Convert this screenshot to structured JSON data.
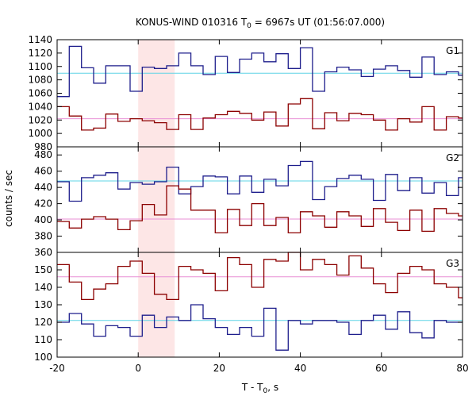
{
  "chart_data": {
    "type": "line",
    "style": "step",
    "title_main": "KONUS-WIND 010316 T",
    "title_sub": "0",
    "title_rest": " = 6967s UT (01:56:07.000)",
    "xlabel_main": "T - T",
    "xlabel_sub": "0",
    "xlabel_rest": ", s",
    "ylabel": "counts / sec",
    "xlim": [
      -20,
      80
    ],
    "x_ticks": [
      "-20",
      "0",
      "20",
      "40",
      "60",
      "80"
    ],
    "highlight_interval": [
      0,
      9
    ],
    "colors": {
      "highlight": "#fde6e6",
      "blue": "#1e1e8c",
      "red": "#8c0000",
      "cyan": "#5fd4e6",
      "pink": "#e88fd6"
    },
    "panels": [
      {
        "name": "G1",
        "ylim": [
          980,
          1140
        ],
        "y_ticks": [
          "980",
          "1000",
          "1020",
          "1040",
          "1060",
          "1080",
          "1100",
          "1120",
          "1140"
        ],
        "blue_baseline": 1090,
        "red_baseline": 1022,
        "series": [
          {
            "color": "blue",
            "x": [
              -20,
              -17,
              -14,
              -11,
              -8,
              -5,
              -2,
              1,
              4,
              7,
              10,
              13,
              16,
              19,
              22,
              25,
              28,
              31,
              34,
              37,
              40,
              43,
              46,
              49,
              52,
              55,
              58,
              61,
              64,
              67,
              70,
              73,
              76,
              79
            ],
            "values": [
              1055,
              1130,
              1098,
              1075,
              1101,
              1101,
              1063,
              1099,
              1097,
              1101,
              1120,
              1101,
              1088,
              1115,
              1091,
              1111,
              1120,
              1107,
              1119,
              1097,
              1128,
              1063,
              1092,
              1099,
              1095,
              1085,
              1096,
              1101,
              1094,
              1084,
              1114,
              1088,
              1092,
              1087
            ]
          },
          {
            "color": "red",
            "x": [
              -20,
              -17,
              -14,
              -11,
              -8,
              -5,
              -2,
              1,
              4,
              7,
              10,
              13,
              16,
              19,
              22,
              25,
              28,
              31,
              34,
              37,
              40,
              43,
              46,
              49,
              52,
              55,
              58,
              61,
              64,
              67,
              70,
              73,
              76,
              79
            ],
            "values": [
              1040,
              1026,
              1005,
              1008,
              1029,
              1018,
              1022,
              1019,
              1016,
              1006,
              1028,
              1006,
              1023,
              1028,
              1033,
              1030,
              1020,
              1032,
              1011,
              1044,
              1052,
              1007,
              1031,
              1019,
              1030,
              1028,
              1020,
              1005,
              1022,
              1017,
              1040,
              1005,
              1025,
              1023
            ]
          }
        ]
      },
      {
        "name": "G2",
        "ylim": [
          360,
          490
        ],
        "y_ticks": [
          "360",
          "380",
          "400",
          "420",
          "440",
          "460",
          "480"
        ],
        "blue_baseline": 448,
        "red_baseline": 401,
        "series": [
          {
            "color": "blue",
            "x": [
              -20,
              -17,
              -14,
              -11,
              -8,
              -5,
              -2,
              1,
              4,
              7,
              10,
              13,
              16,
              19,
              22,
              25,
              28,
              31,
              34,
              37,
              40,
              43,
              46,
              49,
              52,
              55,
              58,
              61,
              64,
              67,
              70,
              73,
              76,
              79
            ],
            "values": [
              447,
              423,
              452,
              455,
              458,
              438,
              446,
              444,
              447,
              465,
              432,
              441,
              454,
              453,
              432,
              454,
              434,
              450,
              442,
              467,
              472,
              425,
              441,
              451,
              455,
              450,
              424,
              456,
              436,
              452,
              433,
              446,
              430,
              452
            ]
          },
          {
            "color": "red",
            "x": [
              -20,
              -17,
              -14,
              -11,
              -8,
              -5,
              -2,
              1,
              4,
              7,
              10,
              13,
              16,
              19,
              22,
              25,
              28,
              31,
              34,
              37,
              40,
              43,
              46,
              49,
              52,
              55,
              58,
              61,
              64,
              67,
              70,
              73,
              76,
              79
            ],
            "values": [
              398,
              390,
              401,
              404,
              401,
              388,
              399,
              419,
              406,
              442,
              438,
              412,
              412,
              384,
              413,
              393,
              420,
              393,
              403,
              384,
              410,
              405,
              391,
              410,
              405,
              392,
              414,
              397,
              387,
              412,
              386,
              414,
              408,
              405
            ]
          }
        ]
      },
      {
        "name": "G3",
        "ylim": [
          100,
          160
        ],
        "y_ticks": [
          "100",
          "110",
          "120",
          "130",
          "140",
          "150"
        ],
        "blue_baseline": 121,
        "red_baseline": 146,
        "series": [
          {
            "color": "blue",
            "x": [
              -20,
              -17,
              -14,
              -11,
              -8,
              -5,
              -2,
              1,
              4,
              7,
              10,
              13,
              16,
              19,
              22,
              25,
              28,
              31,
              34,
              37,
              40,
              43,
              46,
              49,
              52,
              55,
              58,
              61,
              64,
              67,
              70,
              73,
              76,
              79
            ],
            "values": [
              120,
              125,
              119,
              112,
              118,
              117,
              112,
              124,
              117,
              123,
              121,
              130,
              122,
              117,
              113,
              117,
              112,
              128,
              104,
              121,
              119,
              121,
              121,
              120,
              113,
              121,
              124,
              116,
              126,
              114,
              111,
              121,
              120,
              120
            ]
          },
          {
            "color": "red",
            "x": [
              -20,
              -17,
              -14,
              -11,
              -8,
              -5,
              -2,
              1,
              4,
              7,
              10,
              13,
              16,
              19,
              22,
              25,
              28,
              31,
              34,
              37,
              40,
              43,
              46,
              49,
              52,
              55,
              58,
              61,
              64,
              67,
              70,
              73,
              76,
              79
            ],
            "values": [
              153,
              143,
              133,
              139,
              142,
              152,
              155,
              148,
              136,
              133,
              152,
              150,
              148,
              138,
              157,
              153,
              140,
              156,
              155,
              160,
              150,
              156,
              153,
              147,
              158,
              151,
              142,
              137,
              148,
              152,
              150,
              142,
              140,
              134
            ]
          }
        ]
      }
    ]
  }
}
